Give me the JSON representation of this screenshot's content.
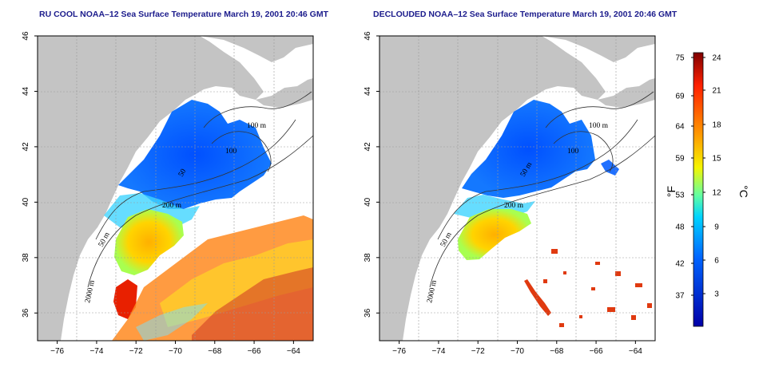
{
  "panels": [
    {
      "title": "RU COOL NOAA–12 Sea Surface Temperature March 19, 2001 20:46 GMT",
      "contour_labels": [
        "100 m",
        "100",
        "50",
        "200 m",
        "50 m",
        "2000 m"
      ],
      "clouds_removed": false
    },
    {
      "title": "DECLOUDED NOAA–12 Sea Surface Temperature March 19, 2001 20:46 GMT",
      "contour_labels": [
        "100 m",
        "100",
        "50 m",
        "200 m",
        "50 m",
        "2000 m"
      ],
      "clouds_removed": true
    }
  ],
  "axes": {
    "x_ticks": [
      "−76",
      "−74",
      "−72",
      "−70",
      "−68",
      "−66",
      "−64"
    ],
    "y_ticks": [
      "36",
      "38",
      "40",
      "42",
      "44",
      "46"
    ],
    "x_range": [
      -77,
      -63
    ],
    "y_range": [
      35,
      46
    ]
  },
  "colorbar": {
    "fahrenheit_ticks": [
      "75",
      "69",
      "64",
      "59",
      "53",
      "48",
      "42",
      "37"
    ],
    "celsius_ticks": [
      "24",
      "21",
      "18",
      "15",
      "12",
      "9",
      "6",
      "3"
    ],
    "fahrenheit_unit": "°F",
    "celsius_unit": "°C",
    "colors": [
      "#7f0000",
      "#ff2000",
      "#ff9a00",
      "#f5f500",
      "#64ffa0",
      "#00d4ff",
      "#0064ff",
      "#0000a8"
    ]
  },
  "colors": {
    "land": "#c4c4c4",
    "title": "#1c1c8c"
  }
}
